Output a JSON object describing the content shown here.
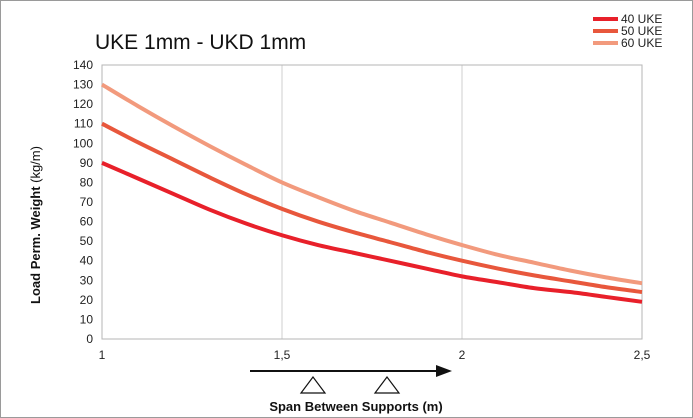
{
  "chart_data": {
    "type": "line",
    "title": "UKE 1mm - UKD 1mm",
    "xlabel": "Span Between Supports (m)",
    "ylabel_bold": "Load Perm. Weight",
    "ylabel_unit": " (kg/m)",
    "xlim": [
      1,
      2.5
    ],
    "ylim": [
      0,
      140
    ],
    "x_ticks": [
      1,
      1.5,
      2,
      2.5
    ],
    "x_tick_labels": [
      "1",
      "1,5",
      "2",
      "2,5"
    ],
    "y_ticks": [
      0,
      10,
      20,
      30,
      40,
      50,
      60,
      70,
      80,
      90,
      100,
      110,
      120,
      130,
      140
    ],
    "y_tick_labels": [
      "0",
      "10",
      "20",
      "30",
      "40",
      "50",
      "60",
      "70",
      "80",
      "90",
      "100",
      "110",
      "120",
      "130",
      "140"
    ],
    "grid": "vertical",
    "legend": "top-right",
    "x": [
      1,
      1.1,
      1.2,
      1.3,
      1.4,
      1.5,
      1.6,
      1.7,
      1.8,
      1.9,
      2,
      2.1,
      2.2,
      2.3,
      2.4,
      2.5
    ],
    "series": [
      {
        "name": "40 UKE",
        "color": "#e8202a",
        "values": [
          90,
          82,
          74,
          66,
          59,
          53,
          48,
          44,
          40,
          36,
          32,
          29,
          26,
          24,
          21.5,
          19
        ]
      },
      {
        "name": "50 UKE",
        "color": "#e8573c",
        "values": [
          110,
          100.5,
          91.5,
          82.5,
          74,
          66.5,
          60,
          54.5,
          49.5,
          44.5,
          40,
          36,
          32.5,
          29.5,
          26.5,
          24
        ]
      },
      {
        "name": "60 UKE",
        "color": "#f29a7d",
        "values": [
          130,
          119,
          108.5,
          98.5,
          89,
          80,
          72.5,
          65.5,
          59.5,
          53.5,
          48,
          43,
          39,
          35,
          31.5,
          28.5
        ]
      }
    ]
  }
}
